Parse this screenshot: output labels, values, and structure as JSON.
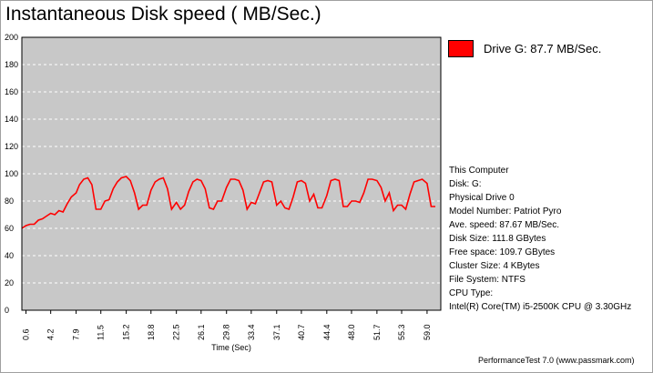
{
  "title": "Instantaneous Disk speed ( MB/Sec.)",
  "legend": {
    "label": "Drive G: 87.7 MB/Sec.",
    "color": "#ff0000"
  },
  "info": {
    "lines": [
      "This Computer",
      "Disk: G:",
      "Physical Drive 0",
      "Model Number: Patriot Pyro",
      "Ave. speed: 87.67 MB/Sec.",
      "Disk Size: 111.8 GBytes",
      "Free space: 109.7 GBytes",
      "Cluster Size: 4 KBytes",
      "File System: NTFS",
      "CPU Type:",
      "Intel(R) Core(TM) i5-2500K CPU @ 3.30GHz"
    ]
  },
  "footer": "PerformanceTest 7.0 (www.passmark.com)",
  "chart_data": {
    "type": "line",
    "xlabel": "Time (Sec)",
    "ylabel": "",
    "ylim": [
      0,
      200
    ],
    "xlim": [
      0,
      61
    ],
    "yticks": [
      0,
      20,
      40,
      60,
      80,
      100,
      120,
      140,
      160,
      180,
      200
    ],
    "xtick_labels": [
      "0.6",
      "4.2",
      "7.9",
      "11.5",
      "15.2",
      "18.8",
      "22.5",
      "26.1",
      "29.8",
      "33.4",
      "37.1",
      "40.7",
      "44.4",
      "48.0",
      "51.7",
      "55.3",
      "59.0"
    ],
    "grid": true,
    "plot_background": "#c8c8c8",
    "legend_position": "top-right",
    "series": [
      {
        "name": "Drive G: 87.7 MB/Sec.",
        "color": "#ff0000",
        "x": [
          0.0,
          0.6,
          1.2,
          1.8,
          2.4,
          3.0,
          3.6,
          4.2,
          4.8,
          5.4,
          6.0,
          6.6,
          7.2,
          7.9,
          8.4,
          9.0,
          9.6,
          10.2,
          10.8,
          11.5,
          12.1,
          12.7,
          13.3,
          13.9,
          14.5,
          15.2,
          15.8,
          16.4,
          17.0,
          17.6,
          18.2,
          18.8,
          19.4,
          20.0,
          20.6,
          21.2,
          21.8,
          22.5,
          23.1,
          23.7,
          24.3,
          24.9,
          25.5,
          26.1,
          26.7,
          27.3,
          27.9,
          28.5,
          29.1,
          29.8,
          30.4,
          31.0,
          31.6,
          32.2,
          32.8,
          33.4,
          34.0,
          34.6,
          35.2,
          35.8,
          36.4,
          37.1,
          37.7,
          38.3,
          38.9,
          39.5,
          40.1,
          40.7,
          41.3,
          41.9,
          42.5,
          43.1,
          43.7,
          44.4,
          45.0,
          45.6,
          46.2,
          46.8,
          47.4,
          48.0,
          48.6,
          49.2,
          49.8,
          50.4,
          51.0,
          51.7,
          52.3,
          52.9,
          53.5,
          54.1,
          54.7,
          55.3,
          55.9,
          56.5,
          57.1,
          57.7,
          58.3,
          59.0,
          59.6,
          60.2
        ],
        "y": [
          60,
          62,
          63,
          63,
          66,
          67,
          69,
          71,
          70,
          73,
          72,
          78,
          83,
          86,
          92,
          96,
          97,
          92,
          74,
          74,
          80,
          81,
          89,
          94,
          97,
          98,
          95,
          86,
          74,
          77,
          77,
          88,
          94,
          96,
          97,
          89,
          74,
          79,
          74,
          77,
          87,
          94,
          96,
          95,
          89,
          75,
          74,
          80,
          80,
          90,
          96,
          96,
          95,
          88,
          74,
          79,
          78,
          86,
          94,
          95,
          94,
          77,
          80,
          75,
          74,
          83,
          94,
          95,
          93,
          80,
          85,
          75,
          75,
          84,
          95,
          96,
          95,
          76,
          76,
          80,
          80,
          79,
          86,
          96,
          96,
          95,
          90,
          80,
          86,
          73,
          77,
          77,
          74,
          85,
          94,
          95,
          96,
          93,
          76,
          76
        ]
      }
    ]
  }
}
